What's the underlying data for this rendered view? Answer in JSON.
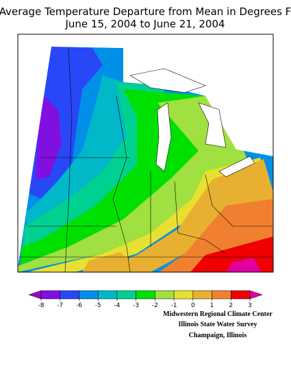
{
  "title": [
    "Average Temperature Departure from Mean in Degrees F",
    "June 15, 2004 to June 21, 2004"
  ],
  "legend": {
    "ticks": [
      -8,
      -7,
      -6,
      -5,
      -4,
      -3,
      -2,
      -1,
      0,
      1,
      2,
      3
    ],
    "colors": [
      "#a000c8",
      "#8010e0",
      "#2848f8",
      "#0090e8",
      "#00b8c8",
      "#00d090",
      "#00e000",
      "#a0e040",
      "#e8e030",
      "#e8b030",
      "#f08030",
      "#f00000",
      "#e000a0"
    ]
  },
  "credits": [
    "Midwestern Regional Climate Center",
    "Illinois State Water Survey",
    "Champaign, Illinois"
  ]
}
